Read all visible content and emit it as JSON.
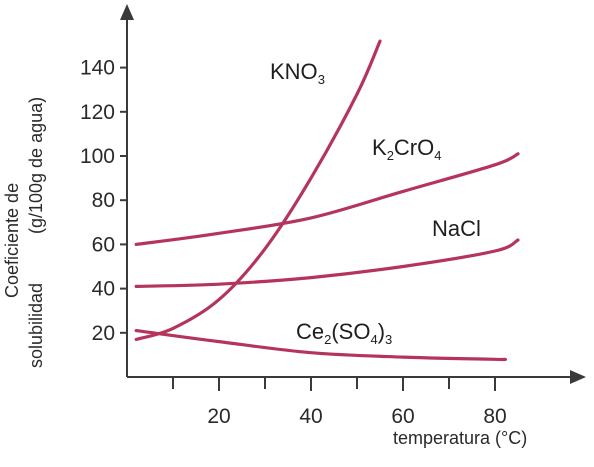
{
  "chart_data": {
    "type": "line",
    "title": "",
    "xlabel": "temperatura (°C)",
    "ylabel_line1": "Coeficiente de",
    "ylabel_line2": "solubilidad",
    "ylabel_unit": "(g/100g de agua)",
    "xlim": [
      0,
      100
    ],
    "ylim": [
      0,
      160
    ],
    "xticks": [
      20,
      40,
      60,
      80
    ],
    "xminor": [
      10,
      30,
      50,
      70
    ],
    "yticks": [
      20,
      40,
      60,
      80,
      100,
      120,
      140
    ],
    "grid": false,
    "line_color": "#b5345c",
    "axis_color": "#3a3a3a",
    "series": [
      {
        "name": "KNO3",
        "label_parts": [
          [
            "KNO",
            "base"
          ],
          [
            "3",
            "sub"
          ]
        ],
        "points": [
          [
            2,
            17
          ],
          [
            10,
            22
          ],
          [
            20,
            35
          ],
          [
            30,
            58
          ],
          [
            40,
            90
          ],
          [
            50,
            128
          ],
          [
            55,
            152
          ]
        ]
      },
      {
        "name": "K2CrO4",
        "label_parts": [
          [
            "K",
            "base"
          ],
          [
            "2",
            "sub"
          ],
          [
            "CrO",
            "base"
          ],
          [
            "4",
            "sub"
          ]
        ],
        "points": [
          [
            2,
            60
          ],
          [
            20,
            65
          ],
          [
            40,
            72
          ],
          [
            60,
            84
          ],
          [
            80,
            96
          ],
          [
            85,
            101
          ]
        ]
      },
      {
        "name": "NaCl",
        "label_parts": [
          [
            "NaCl",
            "base"
          ]
        ],
        "points": [
          [
            2,
            41
          ],
          [
            20,
            42
          ],
          [
            40,
            45
          ],
          [
            60,
            50
          ],
          [
            80,
            57
          ],
          [
            85,
            62
          ]
        ]
      },
      {
        "name": "Ce2(SO4)3",
        "label_parts": [
          [
            "Ce",
            "base"
          ],
          [
            "2",
            "sub"
          ],
          [
            "(SO",
            "base"
          ],
          [
            "4",
            "sub"
          ],
          [
            ")",
            "base"
          ],
          [
            "3",
            "sub"
          ]
        ],
        "points": [
          [
            2,
            21
          ],
          [
            20,
            16
          ],
          [
            40,
            11
          ],
          [
            60,
            9
          ],
          [
            80,
            8
          ],
          [
            82,
            8
          ]
        ]
      }
    ]
  }
}
